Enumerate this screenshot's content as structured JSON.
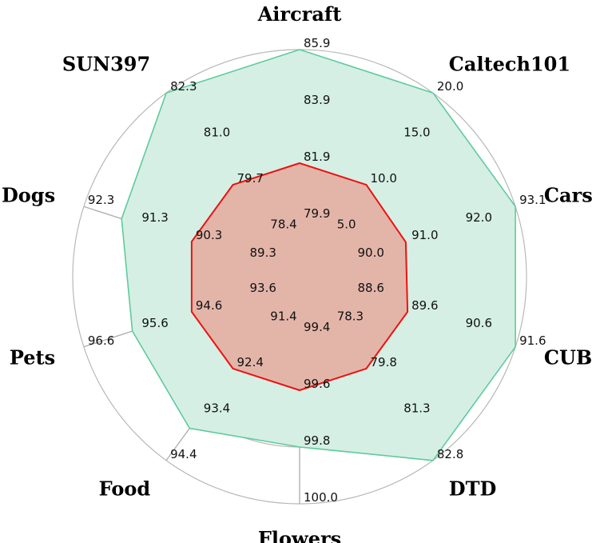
{
  "chart_data": {
    "type": "radar",
    "axes": [
      {
        "label": "Aircraft",
        "ticks": [
          "79.9",
          "81.9",
          "83.9",
          "85.9"
        ],
        "series_values": {
          "inner": 81.9,
          "outer": 85.9
        }
      },
      {
        "label": "Caltech101",
        "ticks": [
          "5.0",
          "10.0",
          "15.0",
          "20.0"
        ],
        "series_values": {
          "inner": 10.0,
          "outer": 20.0
        }
      },
      {
        "label": "Cars",
        "ticks": [
          "90.0",
          "91.0",
          "92.0",
          "93.1"
        ],
        "series_values": {
          "inner": 91.0,
          "outer": 93.1
        }
      },
      {
        "label": "CUB",
        "ticks": [
          "88.6",
          "89.6",
          "90.6",
          "91.6"
        ],
        "series_values": {
          "inner": 89.6,
          "outer": 91.6
        }
      },
      {
        "label": "DTD",
        "ticks": [
          "78.3",
          "79.8",
          "81.3",
          "82.8"
        ],
        "series_values": {
          "inner": 79.8,
          "outer": 82.8
        }
      },
      {
        "label": "Flowers",
        "ticks": [
          "99.4",
          "99.6",
          "99.8",
          "100.0"
        ],
        "series_values": {
          "inner": 99.6,
          "outer": 99.8
        }
      },
      {
        "label": "Food",
        "ticks": [
          "91.4",
          "92.4",
          "93.4",
          "94.4"
        ],
        "series_values": {
          "inner": 92.4,
          "outer": 93.7
        }
      },
      {
        "label": "Pets",
        "ticks": [
          "93.6",
          "94.6",
          "95.6",
          "96.6"
        ],
        "series_values": {
          "inner": 94.6,
          "outer": 95.7
        }
      },
      {
        "label": "Dogs",
        "ticks": [
          "89.3",
          "90.3",
          "91.3",
          "92.3"
        ],
        "series_values": {
          "inner": 90.3,
          "outer": 91.6
        }
      },
      {
        "label": "SUN397",
        "ticks": [
          "78.4",
          "79.7",
          "81.0",
          "82.3"
        ],
        "series_values": {
          "inner": 79.7,
          "outer": 82.3
        }
      }
    ],
    "series": [
      {
        "key": "outer",
        "color": "#5ecb9c",
        "fill": "#d5efe4"
      },
      {
        "key": "inner",
        "color": "#ee1111",
        "fill": "#e3b5a9"
      }
    ],
    "grid": true,
    "legend": "none"
  }
}
